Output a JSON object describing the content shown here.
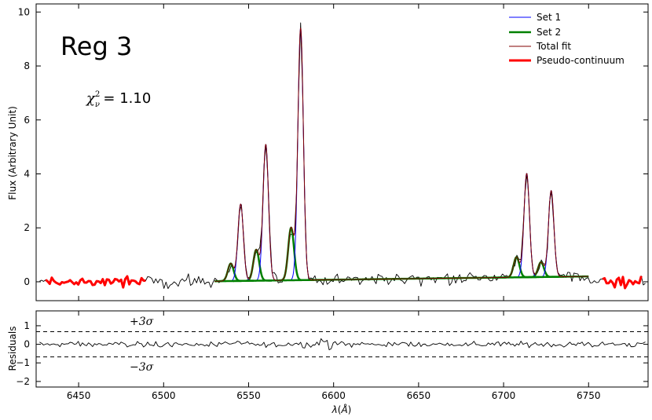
{
  "chart_data": [
    {
      "type": "line",
      "panel": "main",
      "ylabel": "Flux (Arbitrary Unit)",
      "xlim": [
        6425,
        6785
      ],
      "ylim": [
        -0.7,
        10.3
      ],
      "yticks": [
        0,
        2,
        4,
        6,
        8,
        10
      ],
      "grid": false,
      "legend_position": "top-right",
      "annotation": "Reg 3",
      "stat_label": "χ²ν = 1.10",
      "stat_symbol": "χ",
      "stat_sub": "ν",
      "stat_sup": "2",
      "stat_value": "= 1.10",
      "lines": [
        {
          "center": 6548.0,
          "sigma": 1.6,
          "amp": 0.4
        },
        {
          "center": 6562.8,
          "sigma": 1.6,
          "amp": 1.3
        },
        {
          "center": 6583.5,
          "sigma": 1.6,
          "amp": 2.4
        },
        {
          "center": 6716.4,
          "sigma": 1.6,
          "amp": 0.8
        },
        {
          "center": 6730.8,
          "sigma": 1.6,
          "amp": 0.6
        }
      ],
      "set1_lines": [
        {
          "center": 6545.3,
          "sigma": 1.6,
          "amp": 2.85
        },
        {
          "center": 6560.1,
          "sigma": 1.6,
          "amp": 5.05
        },
        {
          "center": 6580.6,
          "sigma": 1.6,
          "amp": 9.35
        },
        {
          "center": 6713.6,
          "sigma": 1.6,
          "amp": 3.85
        },
        {
          "center": 6728.0,
          "sigma": 1.6,
          "amp": 3.2
        }
      ],
      "set2_lines": [
        {
          "center": 6539.5,
          "sigma": 1.7,
          "amp": 0.65
        },
        {
          "center": 6554.5,
          "sigma": 1.7,
          "amp": 1.15
        },
        {
          "center": 6575.0,
          "sigma": 1.7,
          "amp": 1.95
        },
        {
          "center": 6707.6,
          "sigma": 1.7,
          "amp": 0.75
        },
        {
          "center": 6722.0,
          "sigma": 1.7,
          "amp": 0.55
        }
      ],
      "continuum_range": [
        6530,
        6750
      ],
      "continuum_level": [
        0.02,
        0.2
      ],
      "pseudo_continuum_segments": [
        [
          6430,
          6490
        ],
        [
          6757,
          6782
        ]
      ],
      "noise_level": 0.22,
      "series": [
        {
          "name": "Set 1",
          "color": "#0000ff",
          "width": 1
        },
        {
          "name": "Set 2",
          "color": "#008000",
          "width": 2.5
        },
        {
          "name": "Total fit",
          "color": "#800000",
          "width": 1
        },
        {
          "name": "Pseudo-continuum",
          "color": "#ff0000",
          "width": 3
        }
      ]
    },
    {
      "type": "line",
      "panel": "residuals",
      "ylabel": "Residuals",
      "xlabel": "λ(Å)",
      "xlabel_symbol": "λ",
      "xlabel_unit": "Å",
      "xlim": [
        6425,
        6785
      ],
      "ylim": [
        -2.3,
        1.8
      ],
      "yticks": [
        -2,
        -1,
        0,
        1
      ],
      "xticks": [
        6450,
        6500,
        6550,
        6600,
        6650,
        6700,
        6750
      ],
      "sigma_level": 0.68,
      "upper_label": "+3σ",
      "lower_label": "−3σ",
      "noise_level": 0.14
    }
  ]
}
